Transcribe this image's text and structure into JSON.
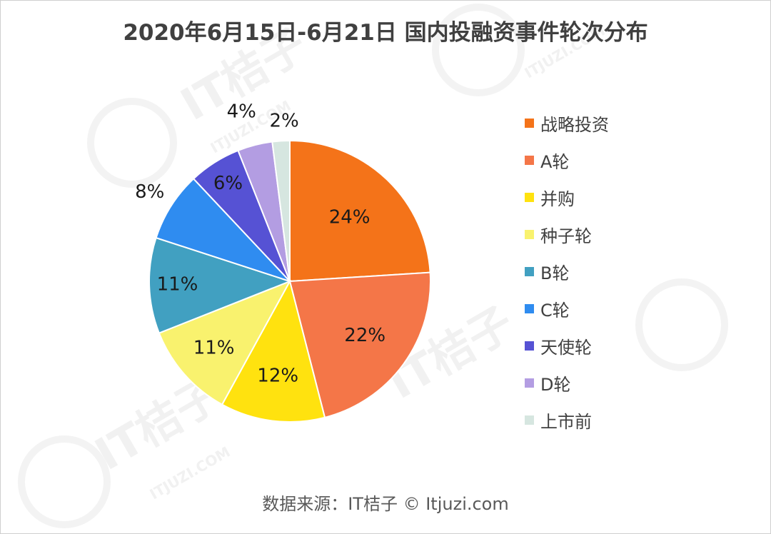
{
  "title": "2020年6月15日-6月21日 国内投融资事件轮次分布",
  "source": "数据来源：IT桔子 © Itjuzi.com",
  "watermark": {
    "brand": "IT桔子",
    "domain": "ITJUZI.COM"
  },
  "chart_data": {
    "type": "pie",
    "title": "2020年6月15日-6月21日 国内投融资事件轮次分布",
    "start_angle_deg": 0,
    "direction": "clockwise",
    "legend_position": "right",
    "slices": [
      {
        "label": "战略投资",
        "value": 24,
        "value_label": "24%",
        "color": "#F47319"
      },
      {
        "label": "A轮",
        "value": 22,
        "value_label": "22%",
        "color": "#F47648"
      },
      {
        "label": "并购",
        "value": 12,
        "value_label": "12%",
        "color": "#FFE20F"
      },
      {
        "label": "种子轮",
        "value": 11,
        "value_label": "11%",
        "color": "#F9F26E"
      },
      {
        "label": "B轮",
        "value": 11,
        "value_label": "11%",
        "color": "#41A0C1"
      },
      {
        "label": "C轮",
        "value": 8,
        "value_label": "8%",
        "color": "#2F8CF0"
      },
      {
        "label": "天使轮",
        "value": 6,
        "value_label": "6%",
        "color": "#5652D4"
      },
      {
        "label": "D轮",
        "value": 4,
        "value_label": "4%",
        "color": "#B39DE2"
      },
      {
        "label": "上市前",
        "value": 2,
        "value_label": "2%",
        "color": "#D6E6E0"
      }
    ]
  }
}
